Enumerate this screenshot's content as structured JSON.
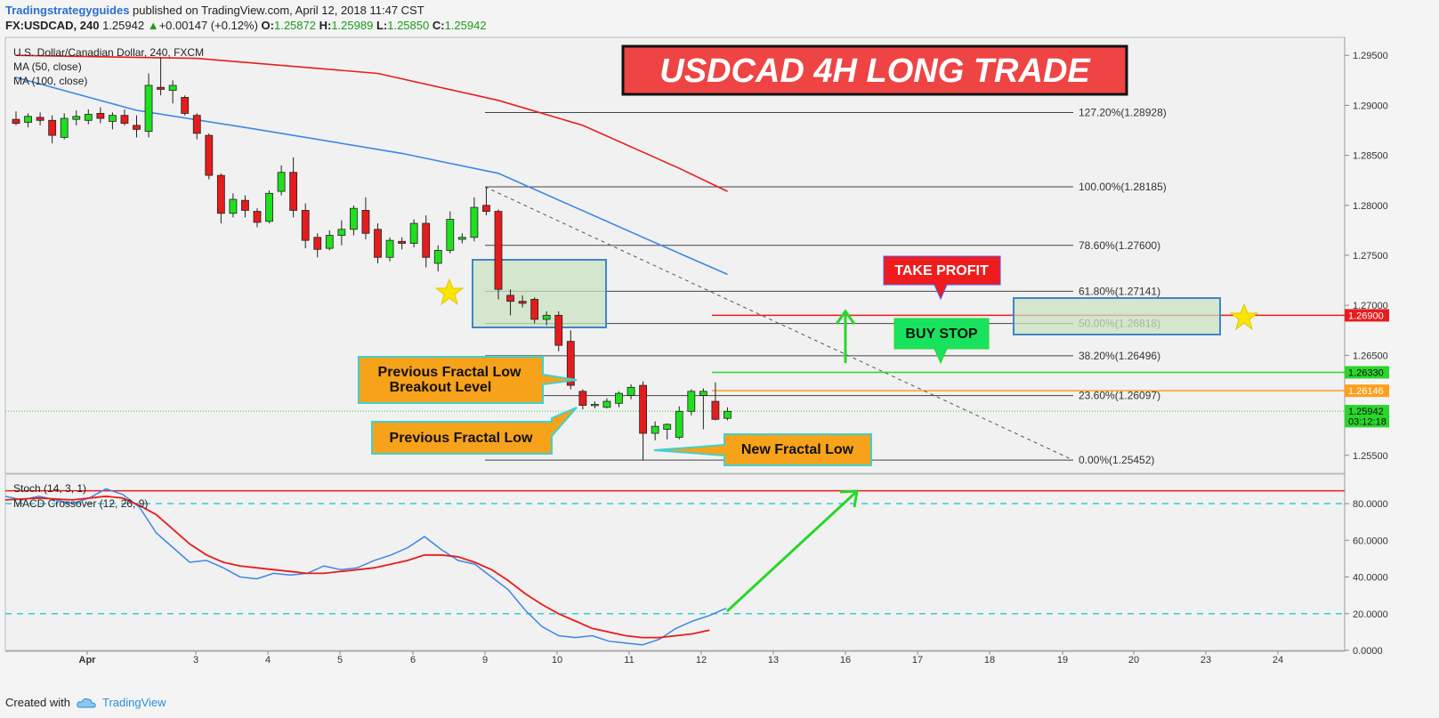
{
  "header": {
    "publisher": "Tradingstrategyguides",
    "published_text": "published on TradingView.com, April 12, 2018 11:47 CST",
    "symbol": "FX:USDCAD, 240",
    "last": "1.25942",
    "change": "+0.00147 (+0.12%)",
    "o_label": "O:",
    "o": "1.25872",
    "h_label": "H:",
    "h": "1.25989",
    "l_label": "L:",
    "l": "1.25850",
    "c_label": "C:",
    "c": "1.25942"
  },
  "footer": {
    "created_with": "Created with",
    "brand": "TradingView"
  },
  "colors": {
    "bull": "#1ee01e",
    "bear": "#e51c1c",
    "ma50": "#e81c1c",
    "ma100": "#3c87e6",
    "stoch_k": "#3c87e6",
    "stoch_d": "#e81c1c",
    "fib": "#444444",
    "green_line": "#2ad62a",
    "orange_line": "#ff9f1c",
    "callout": "#f7a21b",
    "callout_border": "#3ed1d1"
  },
  "chart_data": {
    "type": "candlestick",
    "instrument": "U.S. Dollar/Canadian Dollar, 240, FXCM",
    "title": "USDCAD 4H LONG TRADE",
    "indicators": [
      "MA (50, close)",
      "MA (100, close)"
    ],
    "x_ticks": [
      "Apr",
      "3",
      "4",
      "5",
      "6",
      "9",
      "10",
      "11",
      "12",
      "13",
      "16",
      "17",
      "18",
      "19",
      "20",
      "23",
      "24"
    ],
    "y_ticks": [
      "1.29500",
      "1.29000",
      "1.28500",
      "1.28000",
      "1.27500",
      "1.27000",
      "1.26500",
      "1.25500"
    ],
    "ylim": [
      1.2532,
      1.2968
    ],
    "candles": [
      {
        "o": 1.2886,
        "h": 1.2894,
        "l": 1.288,
        "c": 1.2882
      },
      {
        "o": 1.2883,
        "h": 1.2892,
        "l": 1.2878,
        "c": 1.2889
      },
      {
        "o": 1.2888,
        "h": 1.2893,
        "l": 1.288,
        "c": 1.2885
      },
      {
        "o": 1.2885,
        "h": 1.289,
        "l": 1.2862,
        "c": 1.287
      },
      {
        "o": 1.2868,
        "h": 1.2892,
        "l": 1.2866,
        "c": 1.2887
      },
      {
        "o": 1.2886,
        "h": 1.2895,
        "l": 1.288,
        "c": 1.2889
      },
      {
        "o": 1.2885,
        "h": 1.2896,
        "l": 1.2881,
        "c": 1.2891
      },
      {
        "o": 1.2892,
        "h": 1.2898,
        "l": 1.2882,
        "c": 1.2887
      },
      {
        "o": 1.2884,
        "h": 1.2893,
        "l": 1.2876,
        "c": 1.289
      },
      {
        "o": 1.289,
        "h": 1.2896,
        "l": 1.288,
        "c": 1.2882
      },
      {
        "o": 1.288,
        "h": 1.289,
        "l": 1.2868,
        "c": 1.2876
      },
      {
        "o": 1.2874,
        "h": 1.2932,
        "l": 1.2868,
        "c": 1.292
      },
      {
        "o": 1.2918,
        "h": 1.2948,
        "l": 1.291,
        "c": 1.2916
      },
      {
        "o": 1.2915,
        "h": 1.2925,
        "l": 1.2902,
        "c": 1.292
      },
      {
        "o": 1.2908,
        "h": 1.291,
        "l": 1.289,
        "c": 1.2892
      },
      {
        "o": 1.289,
        "h": 1.2892,
        "l": 1.2866,
        "c": 1.2872
      },
      {
        "o": 1.287,
        "h": 1.2872,
        "l": 1.2826,
        "c": 1.283
      },
      {
        "o": 1.283,
        "h": 1.2832,
        "l": 1.2782,
        "c": 1.2792
      },
      {
        "o": 1.2792,
        "h": 1.2812,
        "l": 1.2788,
        "c": 1.2806
      },
      {
        "o": 1.2805,
        "h": 1.281,
        "l": 1.2788,
        "c": 1.2795
      },
      {
        "o": 1.2794,
        "h": 1.2797,
        "l": 1.2778,
        "c": 1.2783
      },
      {
        "o": 1.2784,
        "h": 1.2815,
        "l": 1.2782,
        "c": 1.2812
      },
      {
        "o": 1.2814,
        "h": 1.284,
        "l": 1.281,
        "c": 1.2833
      },
      {
        "o": 1.2833,
        "h": 1.2848,
        "l": 1.2788,
        "c": 1.2795
      },
      {
        "o": 1.2795,
        "h": 1.2802,
        "l": 1.2757,
        "c": 1.2765
      },
      {
        "o": 1.2768,
        "h": 1.2772,
        "l": 1.2748,
        "c": 1.2756
      },
      {
        "o": 1.2757,
        "h": 1.2775,
        "l": 1.2755,
        "c": 1.277
      },
      {
        "o": 1.277,
        "h": 1.2785,
        "l": 1.276,
        "c": 1.2776
      },
      {
        "o": 1.2776,
        "h": 1.28,
        "l": 1.277,
        "c": 1.2797
      },
      {
        "o": 1.2795,
        "h": 1.2808,
        "l": 1.2766,
        "c": 1.2772
      },
      {
        "o": 1.2776,
        "h": 1.2782,
        "l": 1.2742,
        "c": 1.2748
      },
      {
        "o": 1.2748,
        "h": 1.2768,
        "l": 1.2744,
        "c": 1.2765
      },
      {
        "o": 1.2764,
        "h": 1.2768,
        "l": 1.2756,
        "c": 1.2762
      },
      {
        "o": 1.2762,
        "h": 1.2786,
        "l": 1.2758,
        "c": 1.2782
      },
      {
        "o": 1.2782,
        "h": 1.279,
        "l": 1.2738,
        "c": 1.2748
      },
      {
        "o": 1.2742,
        "h": 1.276,
        "l": 1.2734,
        "c": 1.2755
      },
      {
        "o": 1.2755,
        "h": 1.2794,
        "l": 1.2752,
        "c": 1.2786
      },
      {
        "o": 1.2766,
        "h": 1.2772,
        "l": 1.2762,
        "c": 1.2768
      },
      {
        "o": 1.2768,
        "h": 1.2808,
        "l": 1.2764,
        "c": 1.2798
      },
      {
        "o": 1.28,
        "h": 1.2818,
        "l": 1.279,
        "c": 1.2794
      },
      {
        "o": 1.2794,
        "h": 1.2796,
        "l": 1.2706,
        "c": 1.2716
      },
      {
        "o": 1.271,
        "h": 1.2716,
        "l": 1.269,
        "c": 1.2704
      },
      {
        "o": 1.2704,
        "h": 1.271,
        "l": 1.2698,
        "c": 1.2702
      },
      {
        "o": 1.2706,
        "h": 1.2708,
        "l": 1.2682,
        "c": 1.2686
      },
      {
        "o": 1.2686,
        "h": 1.2694,
        "l": 1.268,
        "c": 1.269
      },
      {
        "o": 1.269,
        "h": 1.2694,
        "l": 1.2654,
        "c": 1.266
      },
      {
        "o": 1.2664,
        "h": 1.2675,
        "l": 1.2616,
        "c": 1.262
      },
      {
        "o": 1.2614,
        "h": 1.2616,
        "l": 1.2596,
        "c": 1.26
      },
      {
        "o": 1.26,
        "h": 1.2604,
        "l": 1.2597,
        "c": 1.2601
      },
      {
        "o": 1.2598,
        "h": 1.2607,
        "l": 1.2597,
        "c": 1.2604
      },
      {
        "o": 1.2602,
        "h": 1.2614,
        "l": 1.2598,
        "c": 1.2612
      },
      {
        "o": 1.261,
        "h": 1.2621,
        "l": 1.2606,
        "c": 1.2618
      },
      {
        "o": 1.262,
        "h": 1.2624,
        "l": 1.2545,
        "c": 1.2572
      },
      {
        "o": 1.2572,
        "h": 1.2584,
        "l": 1.2565,
        "c": 1.2579
      },
      {
        "o": 1.2576,
        "h": 1.2582,
        "l": 1.2566,
        "c": 1.2581
      },
      {
        "o": 1.2568,
        "h": 1.2599,
        "l": 1.2566,
        "c": 1.2594
      },
      {
        "o": 1.2594,
        "h": 1.2616,
        "l": 1.259,
        "c": 1.2614
      },
      {
        "o": 1.261,
        "h": 1.2617,
        "l": 1.2576,
        "c": 1.2614
      },
      {
        "o": 1.2604,
        "h": 1.2623,
        "l": 1.2585,
        "c": 1.2586
      },
      {
        "o": 1.2587,
        "h": 1.2598,
        "l": 1.2585,
        "c": 1.2594
      }
    ],
    "ma50": [
      [
        0,
        1.295
      ],
      [
        15,
        1.2947
      ],
      [
        30,
        1.2932
      ],
      [
        40,
        1.2905
      ],
      [
        47,
        1.288
      ],
      [
        55,
        1.2837
      ],
      [
        59,
        1.2814
      ]
    ],
    "ma100": [
      [
        0,
        1.2928
      ],
      [
        10,
        1.2895
      ],
      [
        20,
        1.2876
      ],
      [
        32,
        1.2852
      ],
      [
        40,
        1.2832
      ],
      [
        46,
        1.28
      ],
      [
        52,
        1.2768
      ],
      [
        59,
        1.2731
      ]
    ],
    "fib": {
      "labels": [
        "127.20%(1.28928)",
        "100.00%(1.28185)",
        "78.60%(1.27600)",
        "61.80%(1.27141)",
        "50.00%(1.26818)",
        "38.20%(1.26496)",
        "23.60%(1.26097)",
        "0.00%(1.25452)"
      ],
      "values": [
        1.28928,
        1.28185,
        1.276,
        1.27141,
        1.26818,
        1.26496,
        1.26097,
        1.25452
      ]
    },
    "price_lines": [
      {
        "label": "1.26900",
        "value": 1.269,
        "color": "#e81c1c",
        "tag": "#e81c1c"
      },
      {
        "label": "1.26330",
        "value": 1.2633,
        "color": "#2ad62a",
        "tag": "#2ad62a"
      },
      {
        "label": "1.26146",
        "value": 1.26146,
        "color": "#ff9f1c",
        "tag": "#ff9f1c"
      },
      {
        "label": "1.25942",
        "value": 1.25942,
        "color": "#2ad62a",
        "tag": "#2ad62a",
        "dotted": true
      },
      {
        "label": "03:12:18",
        "value": 1.25842,
        "color": null,
        "tag": "#2ad62a"
      }
    ],
    "annotations": {
      "take_profit": "TAKE PROFIT",
      "buy_stop": "BUY STOP",
      "prev_fractal_breakout_line1": "Previous Fractal Low",
      "prev_fractal_breakout_line2": "Breakout Level",
      "prev_fractal_low": "Previous Fractal Low",
      "new_fractal_low": "New Fractal Low"
    },
    "stoch": {
      "labels": [
        "Stoch (14, 3, 1)",
        "MACD Crossover (12, 26, 9)"
      ],
      "y_ticks": [
        "80.0000",
        "60.0000",
        "40.0000",
        "20.0000",
        "0.0000"
      ],
      "ylim": [
        0,
        96
      ],
      "k": [
        [
          0,
          84
        ],
        [
          3,
          82
        ],
        [
          6,
          84
        ],
        [
          9,
          82
        ],
        [
          12,
          80
        ],
        [
          15,
          83
        ],
        [
          18,
          88
        ],
        [
          21,
          85
        ],
        [
          24,
          78
        ],
        [
          27,
          64
        ],
        [
          30,
          56
        ],
        [
          33,
          48
        ],
        [
          36,
          49
        ],
        [
          39,
          45
        ],
        [
          42,
          40
        ],
        [
          45,
          39
        ],
        [
          48,
          42
        ],
        [
          51,
          41
        ],
        [
          54,
          42
        ],
        [
          57,
          46
        ],
        [
          60,
          44
        ],
        [
          63,
          45
        ],
        [
          66,
          49
        ],
        [
          69,
          52
        ],
        [
          72,
          56
        ],
        [
          75,
          62
        ],
        [
          78,
          55
        ],
        [
          81,
          49
        ],
        [
          84,
          47
        ],
        [
          87,
          40
        ],
        [
          90,
          33
        ],
        [
          93,
          22
        ],
        [
          96,
          13
        ],
        [
          99,
          8
        ],
        [
          102,
          7
        ],
        [
          105,
          8
        ],
        [
          108,
          5
        ],
        [
          111,
          4
        ],
        [
          114,
          3
        ],
        [
          117,
          6
        ],
        [
          120,
          12
        ],
        [
          123,
          16
        ],
        [
          126,
          19
        ],
        [
          129,
          23
        ]
      ],
      "d": [
        [
          0,
          82
        ],
        [
          6,
          83
        ],
        [
          12,
          82
        ],
        [
          18,
          84
        ],
        [
          21,
          83
        ],
        [
          24,
          79
        ],
        [
          27,
          74
        ],
        [
          30,
          66
        ],
        [
          33,
          58
        ],
        [
          36,
          52
        ],
        [
          39,
          48
        ],
        [
          42,
          46
        ],
        [
          45,
          45
        ],
        [
          48,
          44
        ],
        [
          51,
          43
        ],
        [
          54,
          42
        ],
        [
          57,
          42
        ],
        [
          60,
          43
        ],
        [
          63,
          44
        ],
        [
          66,
          45
        ],
        [
          69,
          47
        ],
        [
          72,
          49
        ],
        [
          75,
          52
        ],
        [
          78,
          52
        ],
        [
          81,
          51
        ],
        [
          84,
          48
        ],
        [
          87,
          44
        ],
        [
          90,
          38
        ],
        [
          93,
          31
        ],
        [
          96,
          25
        ],
        [
          99,
          20
        ],
        [
          102,
          16
        ],
        [
          105,
          12
        ],
        [
          108,
          10
        ],
        [
          111,
          8
        ],
        [
          114,
          7
        ],
        [
          117,
          7
        ],
        [
          120,
          8
        ],
        [
          123,
          9
        ],
        [
          126,
          11
        ]
      ],
      "upper_line": 87,
      "dashed": [
        80,
        20
      ]
    }
  }
}
